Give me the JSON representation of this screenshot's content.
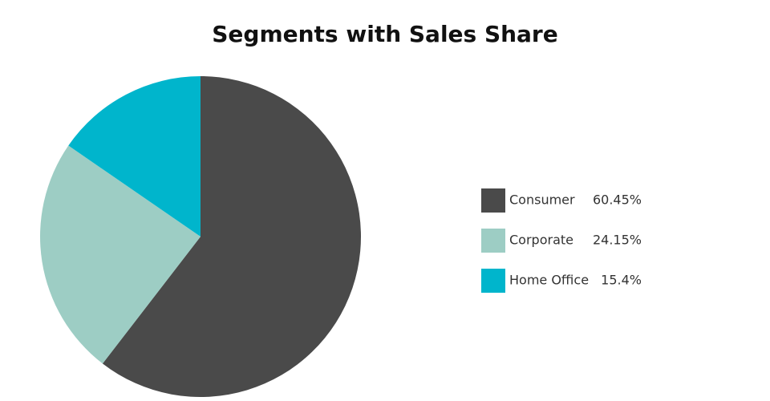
{
  "chart_data": {
    "type": "pie",
    "title": "Segments with Sales Share",
    "categories": [
      "Consumer",
      "Corporate",
      "Home Office"
    ],
    "values": [
      60.45,
      24.15,
      15.4
    ],
    "value_labels": [
      "60.45%",
      "24.15%",
      "15.4%"
    ],
    "colors": [
      "#4a4a4a",
      "#9dcdc4",
      "#00b5cc"
    ]
  }
}
